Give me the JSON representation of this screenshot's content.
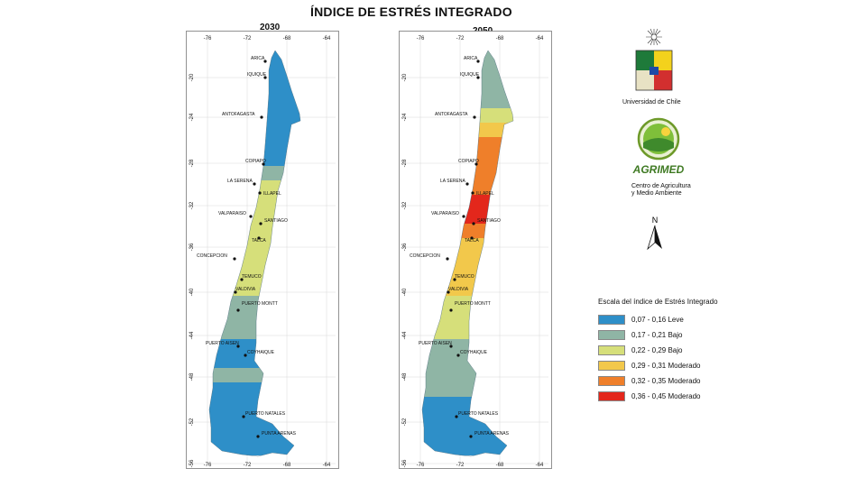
{
  "title": "ÍNDICE DE ESTRÉS INTEGRADO",
  "maps": [
    {
      "year": "2030",
      "lon_ticks": [
        "-76",
        "-72",
        "-68",
        "-64"
      ],
      "lat_ticks": [
        "-20",
        "-24",
        "-28",
        "-32",
        "-36",
        "-40",
        "-44",
        "-48",
        "-52",
        "-56"
      ],
      "cities": [
        "ARICA",
        "IQUIQUE",
        "ANTOFAGASTA",
        "COPIAPO",
        "LA SERENA",
        "ILLAPEL",
        "VALPARAISO",
        "SANTIAGO",
        "TALCA",
        "CONCEPCION",
        "TEMUCO",
        "VALDIVIA",
        "PUERTO MONTT",
        "PUERTO AISEN",
        "COYHAIQUE",
        "PUERTO NATALES",
        "PUNTA ARENAS"
      ],
      "segment_classes": [
        0,
        0,
        0,
        0,
        0,
        0,
        0,
        0,
        1,
        2,
        2,
        2,
        2,
        2,
        2,
        2,
        2,
        1,
        1,
        1,
        0,
        0,
        1,
        0,
        0,
        0,
        0,
        0
      ]
    },
    {
      "year": "2050",
      "lon_ticks": [
        "-76",
        "-72",
        "-68",
        "-64"
      ],
      "lat_ticks": [
        "-20",
        "-24",
        "-28",
        "-32",
        "-36",
        "-40",
        "-44",
        "-48",
        "-52",
        "-56"
      ],
      "cities": [
        "ARICA",
        "IQUIQUE",
        "ANTOFAGASTA",
        "COPIAPO",
        "LA SERENA",
        "ILLAPEL",
        "VALPARAISO",
        "SANTIAGO",
        "TALCA",
        "CONCEPCION",
        "TEMUCO",
        "VALDIVIA",
        "PUERTO MONTT",
        "PUERTO AISEN",
        "COYHAIQUE",
        "PUERTO NATALES",
        "PUNTA ARENAS"
      ],
      "segment_classes": [
        1,
        1,
        1,
        1,
        2,
        3,
        4,
        4,
        4,
        4,
        5,
        5,
        4,
        3,
        3,
        3,
        3,
        2,
        2,
        2,
        1,
        1,
        1,
        1,
        0,
        0,
        0,
        0
      ]
    }
  ],
  "university_name": "Universidad de Chile",
  "agrimed": {
    "name": "AGRIMED",
    "subtitle_line1": "Centro de Agricultura",
    "subtitle_line2": "y Medio Ambiente"
  },
  "north_label": "N",
  "legend": {
    "title": "Escala del índice de Estrés Integrado",
    "items": [
      {
        "label": "0,07 - 0,16  Leve",
        "color": "#2e8fc8"
      },
      {
        "label": "0,17 - 0,21  Bajo",
        "color": "#8fb5a5"
      },
      {
        "label": "0,22 - 0,29  Bajo",
        "color": "#d6df7a"
      },
      {
        "label": "0,29 - 0,31  Moderado",
        "color": "#f2c84b"
      },
      {
        "label": "0,32 - 0,35  Moderado",
        "color": "#ef7f2a"
      },
      {
        "label": "0,36 - 0,45  Moderado",
        "color": "#e3271c"
      }
    ]
  }
}
